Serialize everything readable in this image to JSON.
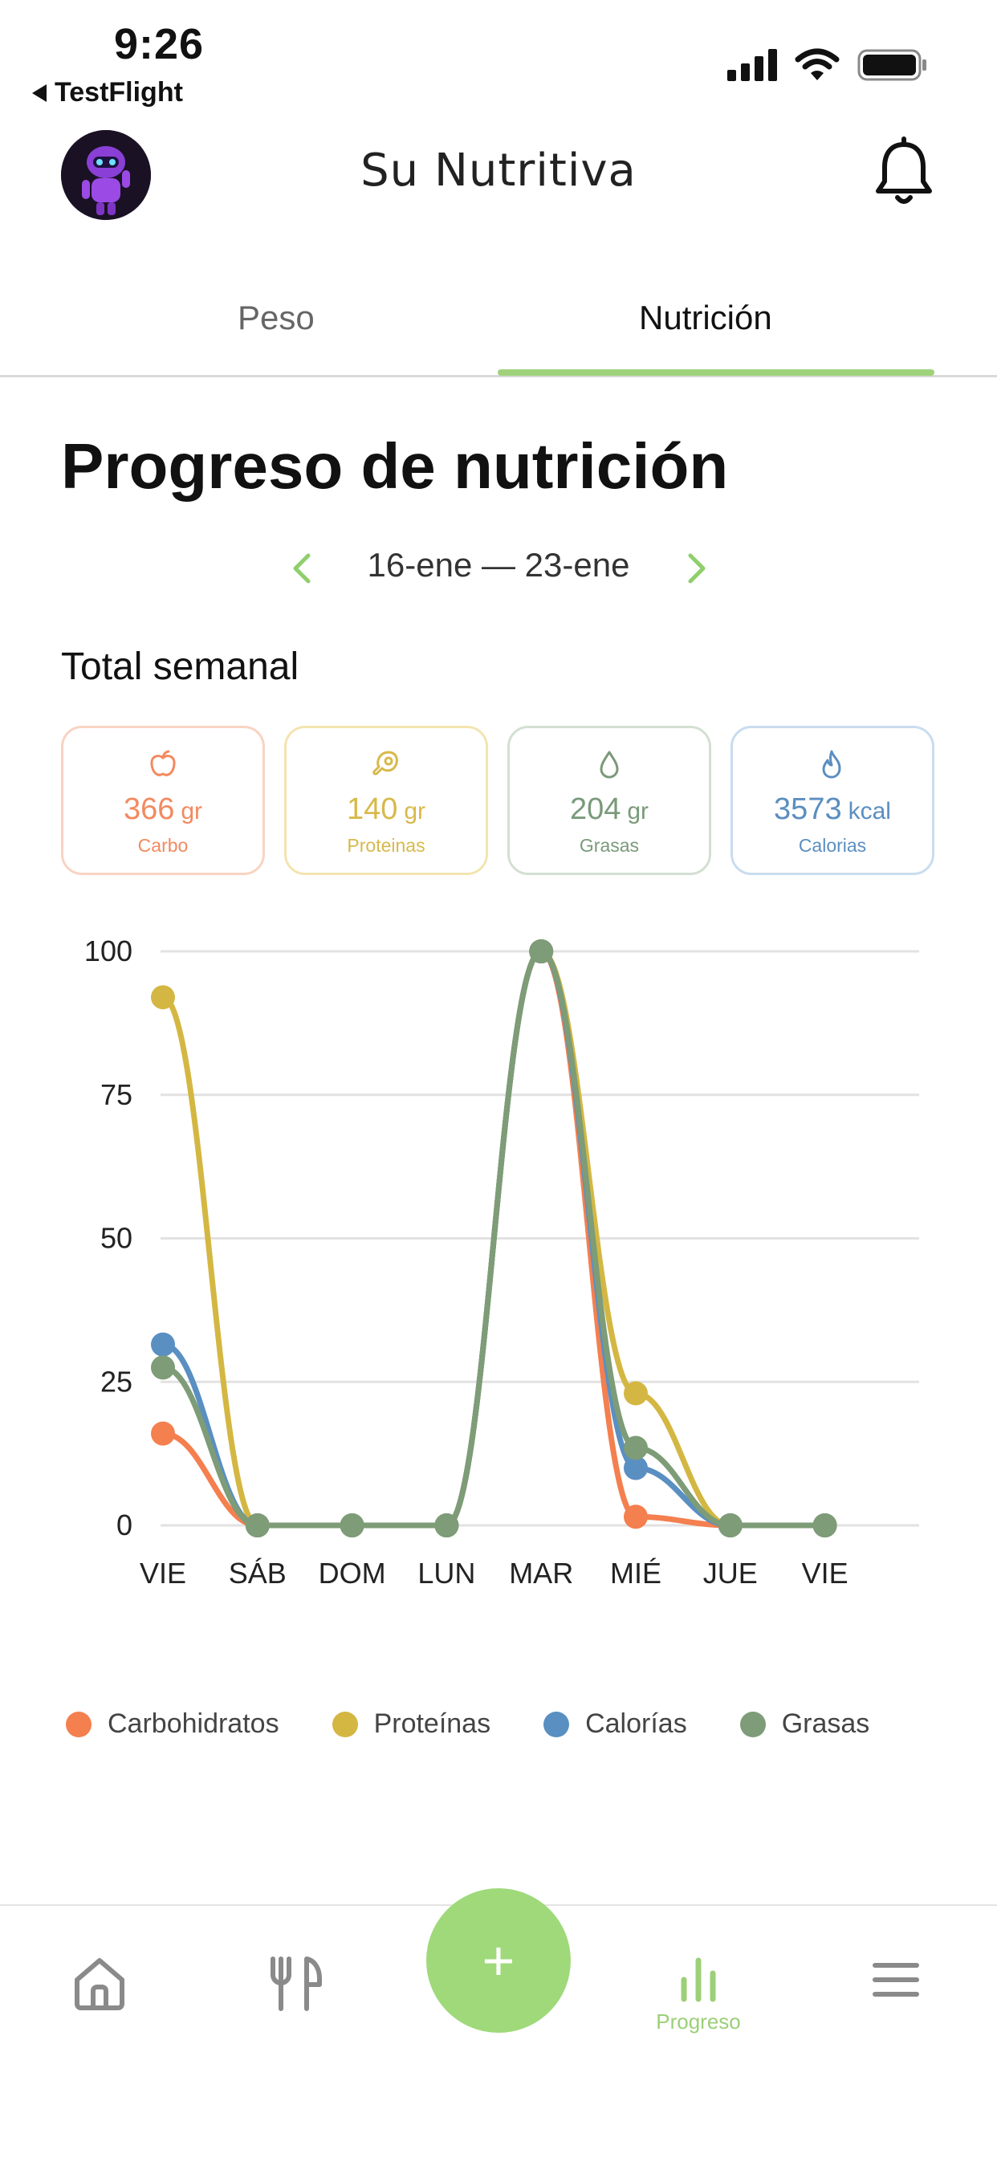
{
  "status_bar": {
    "time": "9:26",
    "back_label": "TestFlight"
  },
  "header": {
    "title": "Su Nutritiva",
    "avatar_icon": "robot-avatar",
    "bell_icon": "bell-icon"
  },
  "tabs": [
    {
      "label": "Peso",
      "active": false
    },
    {
      "label": "Nutrición",
      "active": true
    }
  ],
  "page": {
    "title": "Progreso de nutrición",
    "date_range": "16-ene — 23-ene",
    "section_label": "Total semanal"
  },
  "cards": [
    {
      "icon": "apple-icon",
      "value": "366",
      "unit": "gr",
      "label": "Carbo",
      "color": "#f28a60"
    },
    {
      "icon": "meat-icon",
      "value": "140",
      "unit": "gr",
      "label": "Proteinas",
      "color": "#d8b94a"
    },
    {
      "icon": "drop-icon",
      "value": "204",
      "unit": "gr",
      "label": "Grasas",
      "color": "#7a9a7a"
    },
    {
      "icon": "flame-icon",
      "value": "3573",
      "unit": "kcal",
      "label": "Calorias",
      "color": "#5b8ec0"
    }
  ],
  "chart_data": {
    "type": "line",
    "categories": [
      "VIE",
      "SÁB",
      "DOM",
      "LUN",
      "MAR",
      "MIÉ",
      "JUE",
      "VIE"
    ],
    "ylim": [
      0,
      100
    ],
    "yticks": [
      "0",
      "25",
      "50",
      "75",
      "100"
    ],
    "grid": true,
    "legend_position": "bottom",
    "series": [
      {
        "name": "Carbohidratos",
        "color": "#f47f4f",
        "values": [
          16,
          0,
          0,
          0,
          100,
          1.5,
          0,
          0
        ]
      },
      {
        "name": "Proteínas",
        "color": "#d4b743",
        "values": [
          92,
          0,
          0,
          0,
          100,
          23,
          0,
          0
        ]
      },
      {
        "name": "Calorías",
        "color": "#5a8fc2",
        "values": [
          31.5,
          0,
          0,
          0,
          100,
          10,
          0,
          0
        ]
      },
      {
        "name": "Grasas",
        "color": "#7d9c77",
        "values": [
          27.5,
          0,
          0,
          0,
          100,
          13.5,
          0,
          0
        ]
      }
    ]
  },
  "bottom_nav": {
    "home_icon": "home-icon",
    "food_icon": "fork-knife-icon",
    "add_label": "+",
    "progress_icon": "bar-chart-icon",
    "progress_label": "Progreso",
    "menu_icon": "menu-icon",
    "active_color": "#9ccf78"
  }
}
